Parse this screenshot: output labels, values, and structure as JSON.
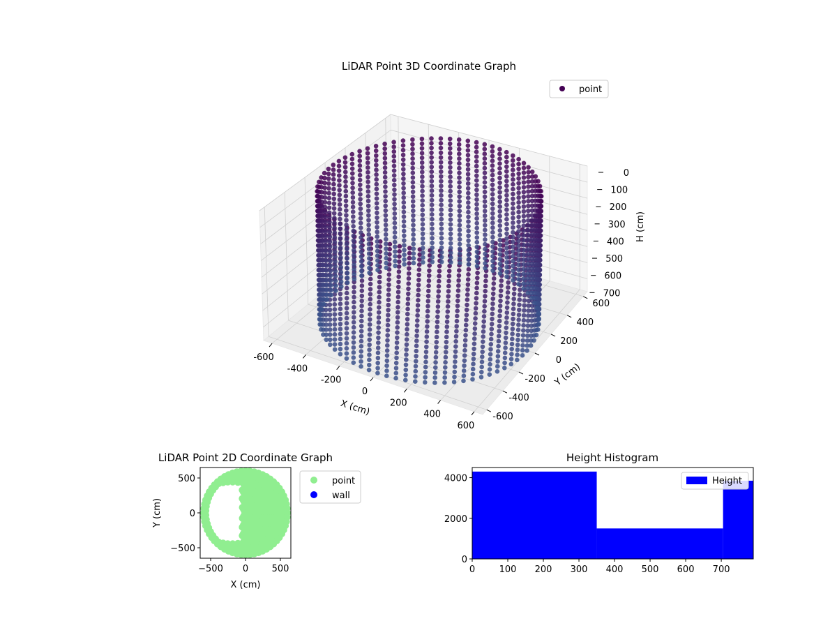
{
  "chart_data": [
    {
      "type": "scatter",
      "projection": "3d",
      "title": "LiDAR Point 3D Coordinate Graph",
      "xlabel": "X (cm)",
      "ylabel": "Y (cm)",
      "zlabel": "H (cm)",
      "xlim": [
        -650,
        650
      ],
      "ylim": [
        -650,
        650
      ],
      "zlim": [
        780,
        0
      ],
      "xticks": [
        -600,
        -400,
        -200,
        0,
        200,
        400,
        600
      ],
      "yticks": [
        -600,
        -400,
        -200,
        0,
        200,
        400,
        600
      ],
      "zticks": [
        0,
        100,
        200,
        300,
        400,
        500,
        600,
        700
      ],
      "z_inverted": true,
      "grid": true,
      "legend": {
        "entries": [
          "point"
        ],
        "placement": "upper-right"
      },
      "colormap": "viridis",
      "shape_description": "cylindrical wall of points",
      "wall_radius": 600,
      "height_range": [
        0,
        780
      ],
      "angular_step_deg": 5,
      "height_step": 30,
      "series": [
        {
          "name": "point",
          "color": "#440154"
        }
      ]
    },
    {
      "type": "scatter",
      "title": "LiDAR Point 2D Coordinate Graph",
      "xlabel": "X (cm)",
      "ylabel": "Y (cm)",
      "xlim": [
        -650,
        650
      ],
      "ylim": [
        -650,
        650
      ],
      "xticks": [
        -500,
        0,
        500
      ],
      "yticks": [
        -500,
        0,
        500
      ],
      "legend": {
        "entries": [
          "point",
          "wall"
        ],
        "placement": "outside-right"
      },
      "series": [
        {
          "name": "point",
          "color": "#90ee90"
        },
        {
          "name": "wall",
          "color": "#0000ff"
        }
      ]
    },
    {
      "type": "bar",
      "title": "Height Histogram",
      "xlim": [
        0,
        790
      ],
      "ylim": [
        0,
        4500
      ],
      "xticks": [
        0,
        100,
        200,
        300,
        400,
        500,
        600,
        700
      ],
      "yticks": [
        0,
        2000,
        4000
      ],
      "legend": {
        "entries": [
          "Height"
        ],
        "placement": "upper-right"
      },
      "bins": [
        {
          "start": 0,
          "end": 350,
          "count": 4300
        },
        {
          "start": 350,
          "end": 705,
          "count": 1500
        },
        {
          "start": 705,
          "end": 790,
          "count": 3850
        }
      ],
      "color": "#0000ff"
    }
  ]
}
